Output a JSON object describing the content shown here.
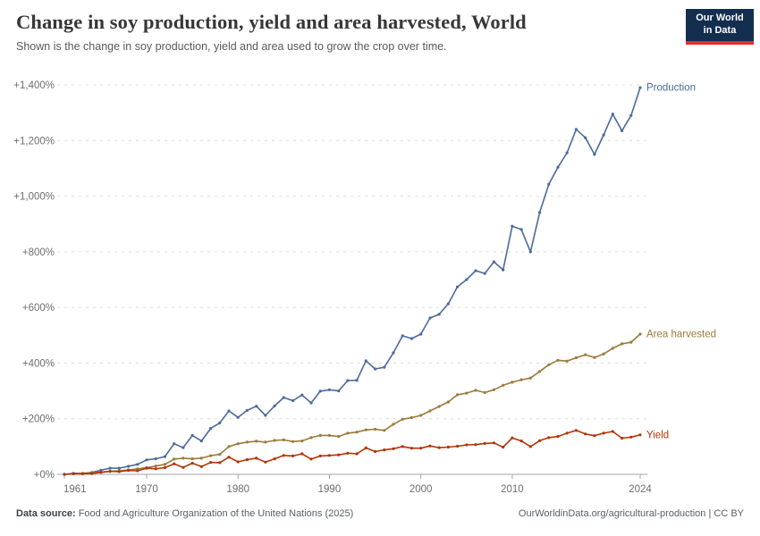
{
  "header": {
    "title": "Change in soy production, yield and area harvested, World",
    "subtitle": "Shown is the change in soy production, yield and area used to grow the crop over time."
  },
  "logo": {
    "line1": "Our World",
    "line2": "in Data",
    "bg_color": "#132E4F",
    "bar_color": "#E02F2F"
  },
  "chart_data": {
    "type": "line",
    "title": "Change in soy production, yield and area harvested, World",
    "xlabel": "",
    "ylabel": "",
    "grid": "horizontal-dashed",
    "legend_position": "line-end-labels",
    "x": {
      "start_year": 1961,
      "end_year": 2024,
      "ticks": [
        1961,
        1970,
        1980,
        1990,
        2000,
        2010,
        2024
      ]
    },
    "y": {
      "min": 0,
      "max": 1400,
      "unit": "%",
      "ticks": [
        {
          "value": 0,
          "label": "+0%"
        },
        {
          "value": 200,
          "label": "+200%"
        },
        {
          "value": 400,
          "label": "+400%"
        },
        {
          "value": 600,
          "label": "+600%"
        },
        {
          "value": 800,
          "label": "+800%"
        },
        {
          "value": 1000,
          "label": "+1,000%"
        },
        {
          "value": 1200,
          "label": "+1,200%"
        },
        {
          "value": 1400,
          "label": "+1,400%"
        }
      ]
    },
    "series": [
      {
        "key": "production",
        "name": "Production",
        "color": "#4C6A9C",
        "values": [
          0,
          4,
          3,
          7,
          15,
          22,
          22,
          29,
          36,
          52,
          56,
          64,
          110,
          96,
          140,
          120,
          165,
          185,
          228,
          205,
          230,
          245,
          212,
          246,
          276,
          265,
          285,
          257,
          299,
          304,
          300,
          337,
          338,
          408,
          379,
          385,
          437,
          498,
          488,
          504,
          562,
          575,
          613,
          674,
          700,
          732,
          722,
          764,
          735,
          892,
          880,
          800,
          941,
          1043,
          1104,
          1156,
          1240,
          1210,
          1150,
          1220,
          1295,
          1235,
          1290,
          1390
        ]
      },
      {
        "key": "area-harvested",
        "name": "Area harvested",
        "color": "#9B7A3B",
        "values": [
          0,
          2,
          4,
          6,
          8,
          11,
          13,
          16,
          20,
          24,
          30,
          36,
          55,
          58,
          56,
          58,
          67,
          72,
          100,
          110,
          116,
          119,
          116,
          122,
          124,
          118,
          120,
          132,
          140,
          140,
          136,
          148,
          152,
          160,
          162,
          158,
          180,
          198,
          204,
          212,
          228,
          244,
          260,
          286,
          292,
          302,
          294,
          304,
          320,
          331,
          340,
          346,
          370,
          394,
          410,
          407,
          419,
          430,
          420,
          433,
          453,
          469,
          475,
          504
        ]
      },
      {
        "key": "yield",
        "name": "Yield",
        "color": "#B13507",
        "values": [
          0,
          2,
          2,
          3,
          7,
          11,
          10,
          14,
          13,
          22,
          20,
          24,
          38,
          25,
          40,
          28,
          43,
          42,
          62,
          45,
          53,
          58,
          44,
          56,
          68,
          66,
          74,
          55,
          66,
          68,
          70,
          76,
          74,
          95,
          82,
          88,
          92,
          100,
          94,
          94,
          102,
          96,
          98,
          101,
          106,
          107,
          111,
          113,
          98,
          131,
          120,
          100,
          121,
          132,
          136,
          148,
          158,
          145,
          139,
          148,
          154,
          130,
          134,
          142
        ]
      }
    ]
  },
  "footer": {
    "source_label": "Data source:",
    "source_text": "Food and Agriculture Organization of the United Nations (2025)",
    "credit": "OurWorldinData.org/agricultural-production | CC BY"
  }
}
